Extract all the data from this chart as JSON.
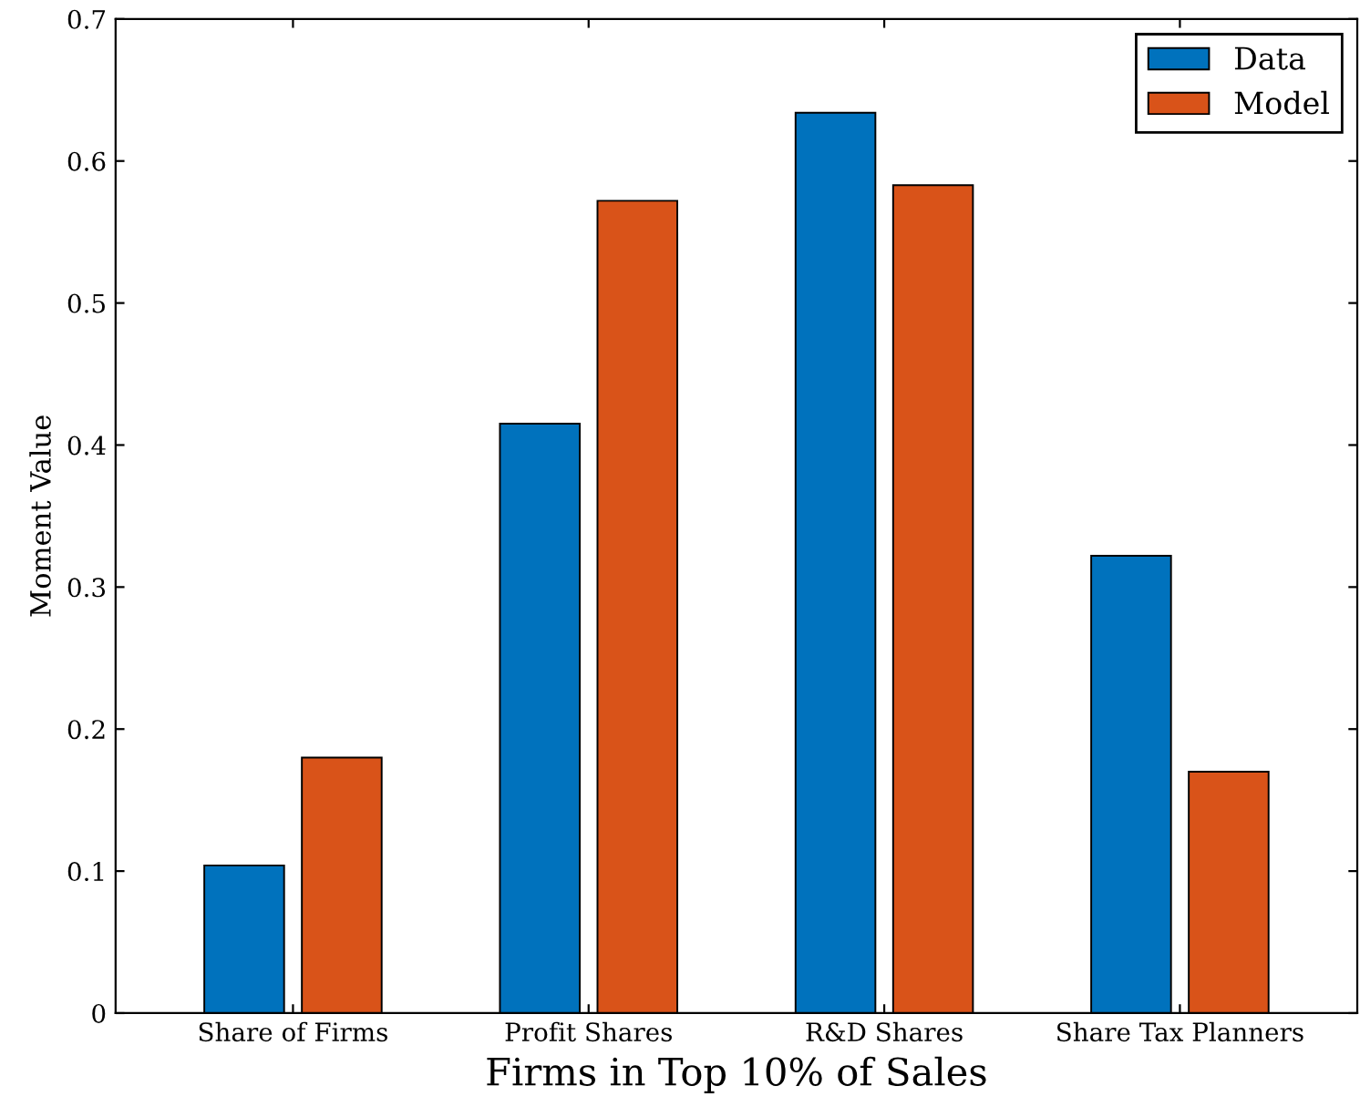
{
  "chart_data": {
    "type": "bar",
    "xlabel": "Firms in Top 10% of Sales",
    "ylabel": "Moment Value",
    "categories": [
      "Share of Firms",
      "Profit Shares",
      "R&D Shares",
      "Share Tax Planners"
    ],
    "series": [
      {
        "name": "Data",
        "color": "#0072bd",
        "values": [
          0.104,
          0.415,
          0.634,
          0.322
        ]
      },
      {
        "name": "Model",
        "color": "#d95319",
        "values": [
          0.18,
          0.572,
          0.583,
          0.17
        ]
      }
    ],
    "ylim": [
      0,
      0.7
    ],
    "yticks": [
      0,
      0.1,
      0.2,
      0.3,
      0.4,
      0.5,
      0.6,
      0.7
    ],
    "grid": false,
    "legend": "top right"
  }
}
